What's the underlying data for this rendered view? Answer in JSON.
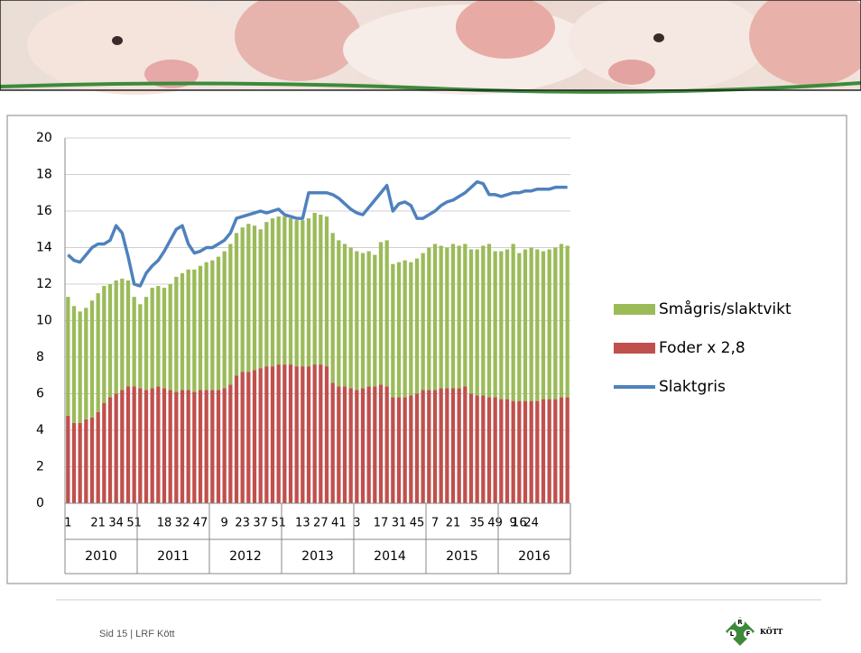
{
  "chart_data": {
    "type": "stacked_bar_line",
    "ylim": [
      0,
      20
    ],
    "yticks": [
      0,
      2,
      4,
      6,
      8,
      10,
      12,
      14,
      16,
      18,
      20
    ],
    "grid": true,
    "years": [
      "2010",
      "2011",
      "2012",
      "2013",
      "2014",
      "2015",
      "2016"
    ],
    "categories": [
      "1",
      null,
      null,
      null,
      null,
      "21",
      null,
      null,
      "34",
      null,
      null,
      "51",
      null,
      null,
      null,
      null,
      "18",
      null,
      null,
      "32",
      null,
      null,
      "47",
      null,
      null,
      null,
      "9",
      null,
      null,
      "23",
      null,
      null,
      "37",
      null,
      null,
      "51",
      null,
      null,
      null,
      "13",
      null,
      null,
      "27",
      null,
      null,
      "41",
      null,
      null,
      "3",
      null,
      null,
      null,
      "17",
      null,
      null,
      "31",
      null,
      null,
      "45",
      null,
      null,
      "7",
      null,
      null,
      "21",
      null,
      null,
      null,
      "35",
      null,
      null,
      "49",
      null,
      null,
      "9",
      "16",
      null,
      "24",
      null,
      null,
      null,
      null,
      null,
      null
    ],
    "series": [
      {
        "name": "Foder x 2,8",
        "color": "#c0504d",
        "kind": "bar",
        "values": [
          4.8,
          4.4,
          4.4,
          4.6,
          4.7,
          5.0,
          5.5,
          5.8,
          6.0,
          6.2,
          6.4,
          6.4,
          6.3,
          6.2,
          6.3,
          6.4,
          6.3,
          6.2,
          6.1,
          6.2,
          6.2,
          6.1,
          6.2,
          6.2,
          6.2,
          6.2,
          6.3,
          6.5,
          7.0,
          7.2,
          7.2,
          7.3,
          7.4,
          7.5,
          7.5,
          7.6,
          7.6,
          7.6,
          7.5,
          7.5,
          7.5,
          7.6,
          7.6,
          7.5,
          6.6,
          6.4,
          6.4,
          6.3,
          6.2,
          6.3,
          6.4,
          6.4,
          6.5,
          6.4,
          5.8,
          5.8,
          5.8,
          5.9,
          6.0,
          6.2,
          6.2,
          6.2,
          6.3,
          6.3,
          6.3,
          6.3,
          6.4,
          6.0,
          5.9,
          5.9,
          5.8,
          5.8,
          5.7,
          5.7,
          5.6,
          5.6,
          5.6,
          5.6,
          5.6,
          5.7,
          5.7,
          5.7,
          5.8,
          5.8
        ]
      },
      {
        "name": "Smågris/slaktvikt",
        "color": "#9bbb59",
        "kind": "bar",
        "values": [
          6.5,
          6.4,
          6.1,
          6.1,
          6.4,
          6.5,
          6.4,
          6.2,
          6.2,
          6.1,
          5.8,
          4.9,
          4.6,
          5.1,
          5.5,
          5.5,
          5.5,
          5.8,
          6.3,
          6.4,
          6.6,
          6.7,
          6.8,
          7.0,
          7.1,
          7.3,
          7.5,
          7.7,
          7.8,
          7.9,
          8.1,
          7.9,
          7.6,
          7.9,
          8.1,
          8.1,
          8.1,
          8.0,
          8.0,
          8.0,
          8.1,
          8.3,
          8.2,
          8.2,
          8.2,
          8.0,
          7.8,
          7.7,
          7.6,
          7.4,
          7.4,
          7.2,
          7.8,
          8.0,
          7.3,
          7.4,
          7.5,
          7.3,
          7.4,
          7.5,
          7.8,
          8.0,
          7.8,
          7.7,
          7.9,
          7.8,
          7.8,
          7.9,
          8.0,
          8.2,
          8.4,
          8.0,
          8.1,
          8.2,
          8.6,
          8.1,
          8.3,
          8.4,
          8.3,
          8.1,
          8.2,
          8.3,
          8.4,
          8.3
        ]
      },
      {
        "name": "Slaktgris",
        "color": "#4f81bd",
        "kind": "line",
        "values": [
          13.6,
          13.3,
          13.2,
          13.6,
          14.0,
          14.2,
          14.2,
          14.4,
          15.2,
          14.8,
          13.5,
          12.0,
          11.9,
          12.6,
          13.0,
          13.3,
          13.8,
          14.4,
          15.0,
          15.2,
          14.2,
          13.7,
          13.8,
          14.0,
          14.0,
          14.2,
          14.4,
          14.8,
          15.6,
          15.7,
          15.8,
          15.9,
          16.0,
          15.9,
          16.0,
          16.1,
          15.8,
          15.7,
          15.6,
          15.6,
          17.0,
          17.0,
          17.0,
          17.0,
          16.9,
          16.7,
          16.4,
          16.1,
          15.9,
          15.8,
          16.2,
          16.6,
          17.0,
          17.4,
          16.0,
          16.4,
          16.5,
          16.3,
          15.6,
          15.6,
          15.8,
          16.0,
          16.3,
          16.5,
          16.6,
          16.8,
          17.0,
          17.3,
          17.6,
          17.5,
          16.9,
          16.9,
          16.8,
          16.9,
          17.0,
          17.0,
          17.1,
          17.1,
          17.2,
          17.2,
          17.2,
          17.3,
          17.3,
          17.3
        ]
      }
    ]
  },
  "footer": {
    "text": "Sid 15 | LRF Kött",
    "logo_letters": [
      "L",
      "R",
      "F"
    ],
    "logo_text": "KÖTT"
  }
}
